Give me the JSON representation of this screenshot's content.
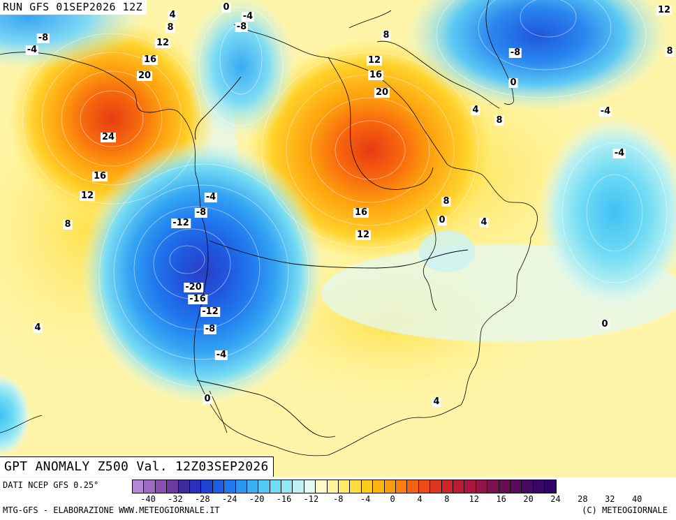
{
  "header": {
    "run_label": "RUN GFS 01SEP2026 12Z"
  },
  "map": {
    "title": "GPT ANOMALY Z500 Val. 12Z03SEP2026",
    "contour_labels": [
      {
        "text": "0"
      },
      {
        "text": "-4"
      },
      {
        "text": "4"
      },
      {
        "text": "-8"
      },
      {
        "text": "8"
      },
      {
        "text": "-8"
      },
      {
        "text": "-4"
      },
      {
        "text": "12"
      },
      {
        "text": "16"
      },
      {
        "text": "20"
      },
      {
        "text": "24"
      },
      {
        "text": "16"
      },
      {
        "text": "12"
      },
      {
        "text": "8"
      },
      {
        "text": "-4"
      },
      {
        "text": "-8"
      },
      {
        "text": "-12"
      },
      {
        "text": "-20"
      },
      {
        "text": "-16"
      },
      {
        "text": "-12"
      },
      {
        "text": "-8"
      },
      {
        "text": "-4"
      },
      {
        "text": "4"
      },
      {
        "text": "0"
      },
      {
        "text": "8"
      },
      {
        "text": "12"
      },
      {
        "text": "16"
      },
      {
        "text": "20"
      },
      {
        "text": "8"
      },
      {
        "text": "4"
      },
      {
        "text": "8"
      },
      {
        "text": "0"
      },
      {
        "text": "16"
      },
      {
        "text": "12"
      },
      {
        "text": "8"
      },
      {
        "text": "0"
      },
      {
        "text": "4"
      },
      {
        "text": "12"
      },
      {
        "text": "8"
      },
      {
        "text": "-8"
      },
      {
        "text": "0"
      },
      {
        "text": "-4"
      },
      {
        "text": "-4"
      },
      {
        "text": "0"
      },
      {
        "text": "4"
      },
      {
        "text": "4"
      }
    ]
  },
  "footer": {
    "source": "DATI NCEP GFS 0.25°",
    "credit": "MTG-GFS - ELABORAZIONE WWW.METEOGIORNALE.IT",
    "copyright": "(C) METEOGIORNALE",
    "scale": {
      "colors": [
        "#b589d6",
        "#9f6ac6",
        "#8a50b6",
        "#6d3aa3",
        "#3c2b9e",
        "#2b2fc0",
        "#1f45d8",
        "#1c5fe6",
        "#2079ee",
        "#2b95f2",
        "#39b0f4",
        "#52c8f5",
        "#6ddcf5",
        "#92e8f4",
        "#bdf2f2",
        "#e3f9f4",
        "#fff9c8",
        "#fff39a",
        "#ffe96a",
        "#ffdc3c",
        "#ffcc1e",
        "#ffb40f",
        "#ff9a0c",
        "#ff7e0c",
        "#f8620e",
        "#ee4a14",
        "#e0341c",
        "#cf2427",
        "#bc1b34",
        "#a8163f",
        "#941348",
        "#7e1050",
        "#6a0d57",
        "#580a5c",
        "#470862",
        "#3a0666",
        "#2f0569"
      ],
      "tick_labels": [
        "-40",
        "-32",
        "-28",
        "-24",
        "-20",
        "-16",
        "-12",
        "-8",
        "-4",
        "0",
        "4",
        "8",
        "12",
        "16",
        "20",
        "24",
        "28",
        "32",
        "40"
      ]
    }
  }
}
